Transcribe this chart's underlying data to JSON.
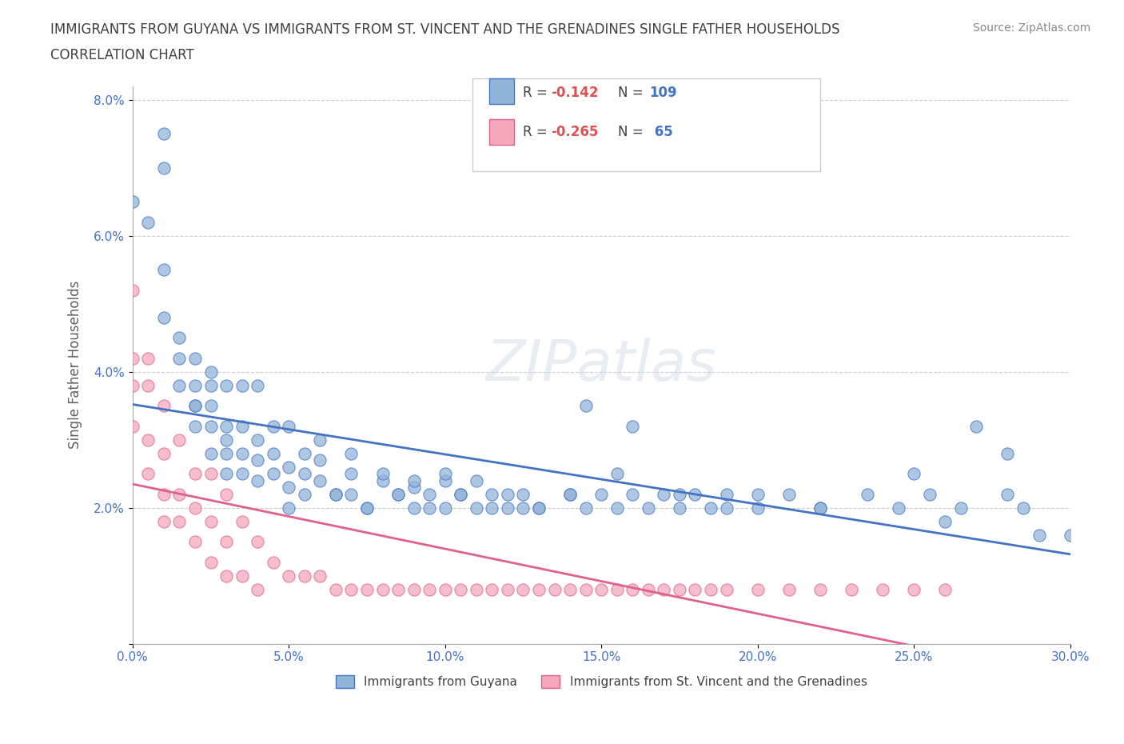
{
  "title_line1": "IMMIGRANTS FROM GUYANA VS IMMIGRANTS FROM ST. VINCENT AND THE GRENADINES SINGLE FATHER HOUSEHOLDS",
  "title_line2": "CORRELATION CHART",
  "source_text": "Source: ZipAtlas.com",
  "watermark": "ZIPatlas",
  "xlabel": "",
  "ylabel": "Single Father Households",
  "xlim": [
    0.0,
    0.3
  ],
  "ylim": [
    0.0,
    0.082
  ],
  "xticks": [
    0.0,
    0.05,
    0.1,
    0.15,
    0.2,
    0.25,
    0.3
  ],
  "xticklabels": [
    "0.0%",
    "5.0%",
    "10.0%",
    "15.0%",
    "20.0%",
    "25.0%",
    "30.0%"
  ],
  "yticks": [
    0.0,
    0.02,
    0.04,
    0.06,
    0.08
  ],
  "yticklabels": [
    "",
    "2.0%",
    "4.0%",
    "6.0%",
    "8.0%"
  ],
  "legend_r1": "R = -0.142",
  "legend_n1": "N = 109",
  "legend_r2": "R = -0.265",
  "legend_n2": "N =  65",
  "color_blue": "#92b4d8",
  "color_pink": "#f4a7b9",
  "color_blue_line": "#4472c4",
  "color_pink_line": "#e06090",
  "legend_label1": "Immigrants from Guyana",
  "legend_label2": "Immigrants from St. Vincent and the Grenadines",
  "title_color": "#404040",
  "axis_label_color": "#606060",
  "tick_color": "#4472c4",
  "r_color": "#e05050",
  "n_color": "#4472c4",
  "guyana_x": [
    0.0,
    0.005,
    0.01,
    0.01,
    0.015,
    0.015,
    0.015,
    0.02,
    0.02,
    0.02,
    0.02,
    0.025,
    0.025,
    0.025,
    0.025,
    0.03,
    0.03,
    0.03,
    0.03,
    0.035,
    0.035,
    0.035,
    0.04,
    0.04,
    0.04,
    0.045,
    0.045,
    0.05,
    0.05,
    0.05,
    0.055,
    0.055,
    0.06,
    0.06,
    0.065,
    0.07,
    0.07,
    0.075,
    0.08,
    0.085,
    0.09,
    0.09,
    0.095,
    0.1,
    0.1,
    0.105,
    0.11,
    0.115,
    0.12,
    0.125,
    0.13,
    0.14,
    0.145,
    0.15,
    0.155,
    0.16,
    0.165,
    0.17,
    0.175,
    0.18,
    0.185,
    0.19,
    0.2,
    0.21,
    0.22,
    0.235,
    0.245,
    0.255,
    0.265,
    0.28,
    0.285,
    0.01,
    0.01,
    0.02,
    0.025,
    0.03,
    0.04,
    0.05,
    0.06,
    0.07,
    0.08,
    0.09,
    0.1,
    0.11,
    0.12,
    0.13,
    0.14,
    0.27,
    0.28,
    0.29,
    0.145,
    0.16,
    0.155,
    0.175,
    0.19,
    0.2,
    0.22,
    0.25,
    0.26,
    0.3,
    0.035,
    0.045,
    0.055,
    0.065,
    0.075,
    0.085,
    0.095,
    0.105,
    0.115,
    0.125
  ],
  "guyana_y": [
    0.065,
    0.062,
    0.055,
    0.048,
    0.045,
    0.042,
    0.038,
    0.042,
    0.038,
    0.035,
    0.032,
    0.038,
    0.035,
    0.032,
    0.028,
    0.032,
    0.03,
    0.028,
    0.025,
    0.032,
    0.028,
    0.025,
    0.03,
    0.027,
    0.024,
    0.028,
    0.025,
    0.026,
    0.023,
    0.02,
    0.025,
    0.022,
    0.027,
    0.024,
    0.022,
    0.025,
    0.022,
    0.02,
    0.024,
    0.022,
    0.023,
    0.02,
    0.022,
    0.024,
    0.02,
    0.022,
    0.02,
    0.022,
    0.02,
    0.022,
    0.02,
    0.022,
    0.02,
    0.022,
    0.02,
    0.022,
    0.02,
    0.022,
    0.02,
    0.022,
    0.02,
    0.022,
    0.02,
    0.022,
    0.02,
    0.022,
    0.02,
    0.022,
    0.02,
    0.022,
    0.02,
    0.075,
    0.07,
    0.035,
    0.04,
    0.038,
    0.038,
    0.032,
    0.03,
    0.028,
    0.025,
    0.024,
    0.025,
    0.024,
    0.022,
    0.02,
    0.022,
    0.032,
    0.028,
    0.016,
    0.035,
    0.032,
    0.025,
    0.022,
    0.02,
    0.022,
    0.02,
    0.025,
    0.018,
    0.016,
    0.038,
    0.032,
    0.028,
    0.022,
    0.02,
    0.022,
    0.02,
    0.022,
    0.02,
    0.02
  ],
  "stvincent_x": [
    0.0,
    0.0,
    0.0,
    0.0,
    0.005,
    0.005,
    0.005,
    0.005,
    0.01,
    0.01,
    0.01,
    0.01,
    0.015,
    0.015,
    0.015,
    0.02,
    0.02,
    0.02,
    0.025,
    0.025,
    0.025,
    0.03,
    0.03,
    0.03,
    0.035,
    0.035,
    0.04,
    0.04,
    0.045,
    0.05,
    0.055,
    0.06,
    0.065,
    0.07,
    0.075,
    0.08,
    0.085,
    0.09,
    0.095,
    0.1,
    0.105,
    0.11,
    0.115,
    0.12,
    0.125,
    0.13,
    0.135,
    0.14,
    0.145,
    0.15,
    0.155,
    0.16,
    0.165,
    0.17,
    0.175,
    0.18,
    0.185,
    0.19,
    0.2,
    0.21,
    0.22,
    0.23,
    0.24,
    0.25,
    0.26
  ],
  "stvincent_y": [
    0.052,
    0.042,
    0.038,
    0.032,
    0.042,
    0.038,
    0.03,
    0.025,
    0.035,
    0.028,
    0.022,
    0.018,
    0.03,
    0.022,
    0.018,
    0.025,
    0.02,
    0.015,
    0.025,
    0.018,
    0.012,
    0.022,
    0.015,
    0.01,
    0.018,
    0.01,
    0.015,
    0.008,
    0.012,
    0.01,
    0.01,
    0.01,
    0.008,
    0.008,
    0.008,
    0.008,
    0.008,
    0.008,
    0.008,
    0.008,
    0.008,
    0.008,
    0.008,
    0.008,
    0.008,
    0.008,
    0.008,
    0.008,
    0.008,
    0.008,
    0.008,
    0.008,
    0.008,
    0.008,
    0.008,
    0.008,
    0.008,
    0.008,
    0.008,
    0.008,
    0.008,
    0.008,
    0.008,
    0.008,
    0.008
  ]
}
